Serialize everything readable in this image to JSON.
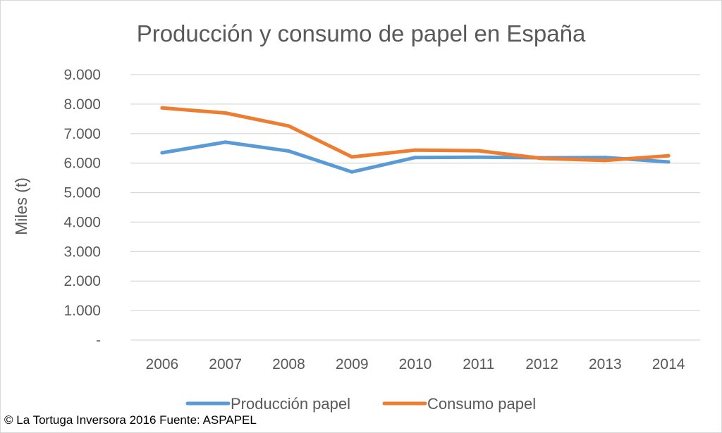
{
  "chart_data": {
    "type": "line",
    "title": "Producción y consumo de papel en España",
    "ylabel": "Miles (t)",
    "xlabel": "",
    "categories": [
      "2006",
      "2007",
      "2008",
      "2009",
      "2010",
      "2011",
      "2012",
      "2013",
      "2014"
    ],
    "series": [
      {
        "name": "Producción papel",
        "color": "#5b9bd5",
        "values": [
          6350,
          6710,
          6410,
          5700,
          6190,
          6200,
          6180,
          6190,
          6040
        ]
      },
      {
        "name": "Consumo papel",
        "color": "#ed7d31",
        "values": [
          7870,
          7700,
          7260,
          6210,
          6440,
          6420,
          6160,
          6090,
          6250
        ]
      }
    ],
    "ylim": [
      0,
      9000
    ],
    "yticks": [
      {
        "value": 0,
        "label": "-"
      },
      {
        "value": 1000,
        "label": "1.000"
      },
      {
        "value": 2000,
        "label": "2.000"
      },
      {
        "value": 3000,
        "label": "3.000"
      },
      {
        "value": 4000,
        "label": "4.000"
      },
      {
        "value": 5000,
        "label": "5.000"
      },
      {
        "value": 6000,
        "label": "6.000"
      },
      {
        "value": 7000,
        "label": "7.000"
      },
      {
        "value": 8000,
        "label": "8.000"
      },
      {
        "value": 9000,
        "label": "9.000"
      }
    ],
    "grid": true,
    "gridline_color": "#d9d9d9",
    "legend": "bottom"
  },
  "footer": {
    "text": "© La Tortuga Inversora 2016 Fuente: ASPAPEL"
  }
}
